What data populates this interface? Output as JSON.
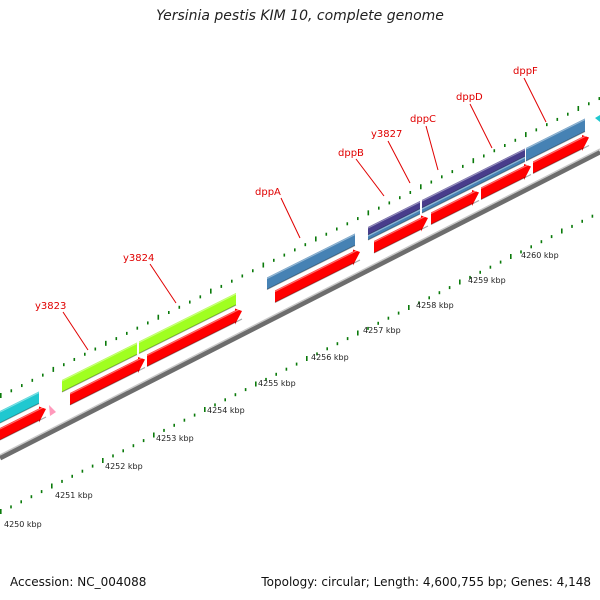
{
  "title": "Yersinia pestis KIM 10, complete genome",
  "footer": {
    "accession": "Accession: NC_004088",
    "summary": "Topology: circular; Length: 4,600,755 bp; Genes: 4,148"
  },
  "colors": {
    "cds": "#ff0000",
    "steel_blue": "#4682b4",
    "indigo": "#483d8b",
    "lime": "#a0ff20",
    "cyan": "#20c8d0",
    "pink": "#ff99bb",
    "label": "#e00000",
    "tick_dots": "#0a7a0a",
    "backbone": "#999999"
  },
  "scale_labels": [
    "4250 kbp",
    "4251 kbp",
    "4252 kbp",
    "4253 kbp",
    "4254 kbp",
    "4255 kbp",
    "4256 kbp",
    "4257 kbp",
    "4258 kbp",
    "4259 kbp",
    "4260 kbp"
  ],
  "gene_labels": [
    "y3823",
    "y3824",
    "dppA",
    "dppB",
    "y3827",
    "dppC",
    "dppD",
    "dppF"
  ]
}
